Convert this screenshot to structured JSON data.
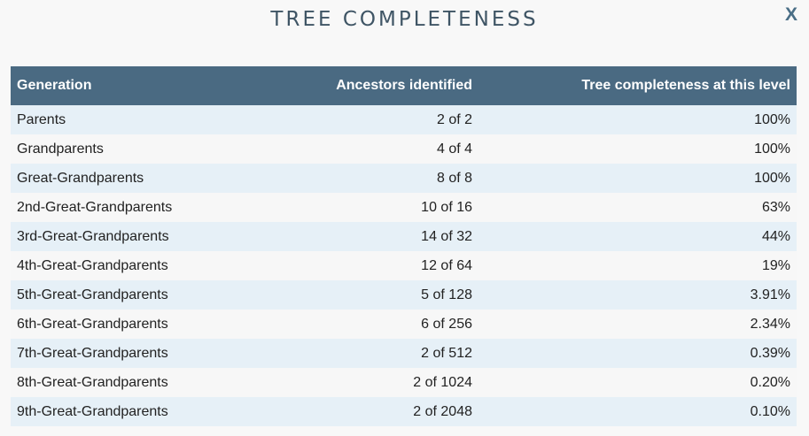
{
  "modal": {
    "title": "TREE COMPLETENESS",
    "close_label": "X"
  },
  "table": {
    "headers": [
      "Generation",
      "Ancestors identified",
      "Tree completeness at this level"
    ],
    "rows": [
      [
        "Parents",
        "2 of 2",
        "100%"
      ],
      [
        "Grandparents",
        "4 of 4",
        "100%"
      ],
      [
        "Great-Grandparents",
        "8 of 8",
        "100%"
      ],
      [
        "2nd-Great-Grandparents",
        "10 of 16",
        "63%"
      ],
      [
        "3rd-Great-Grandparents",
        "14 of 32",
        "44%"
      ],
      [
        "4th-Great-Grandparents",
        "12 of 64",
        "19%"
      ],
      [
        "5th-Great-Grandparents",
        "5 of 128",
        "3.91%"
      ],
      [
        "6th-Great-Grandparents",
        "6 of 256",
        "2.34%"
      ],
      [
        "7th-Great-Grandparents",
        "2 of 512",
        "0.39%"
      ],
      [
        "8th-Great-Grandparents",
        "2 of 1024",
        "0.20%"
      ],
      [
        "9th-Great-Grandparents",
        "2 of 2048",
        "0.10%"
      ]
    ]
  },
  "colors": {
    "header_bg": "#4a6a82",
    "row_odd_bg": "#e6f0f7",
    "row_even_bg": "#f7f7f7",
    "title_color": "#3f5565",
    "close_color": "#4a6e86"
  }
}
